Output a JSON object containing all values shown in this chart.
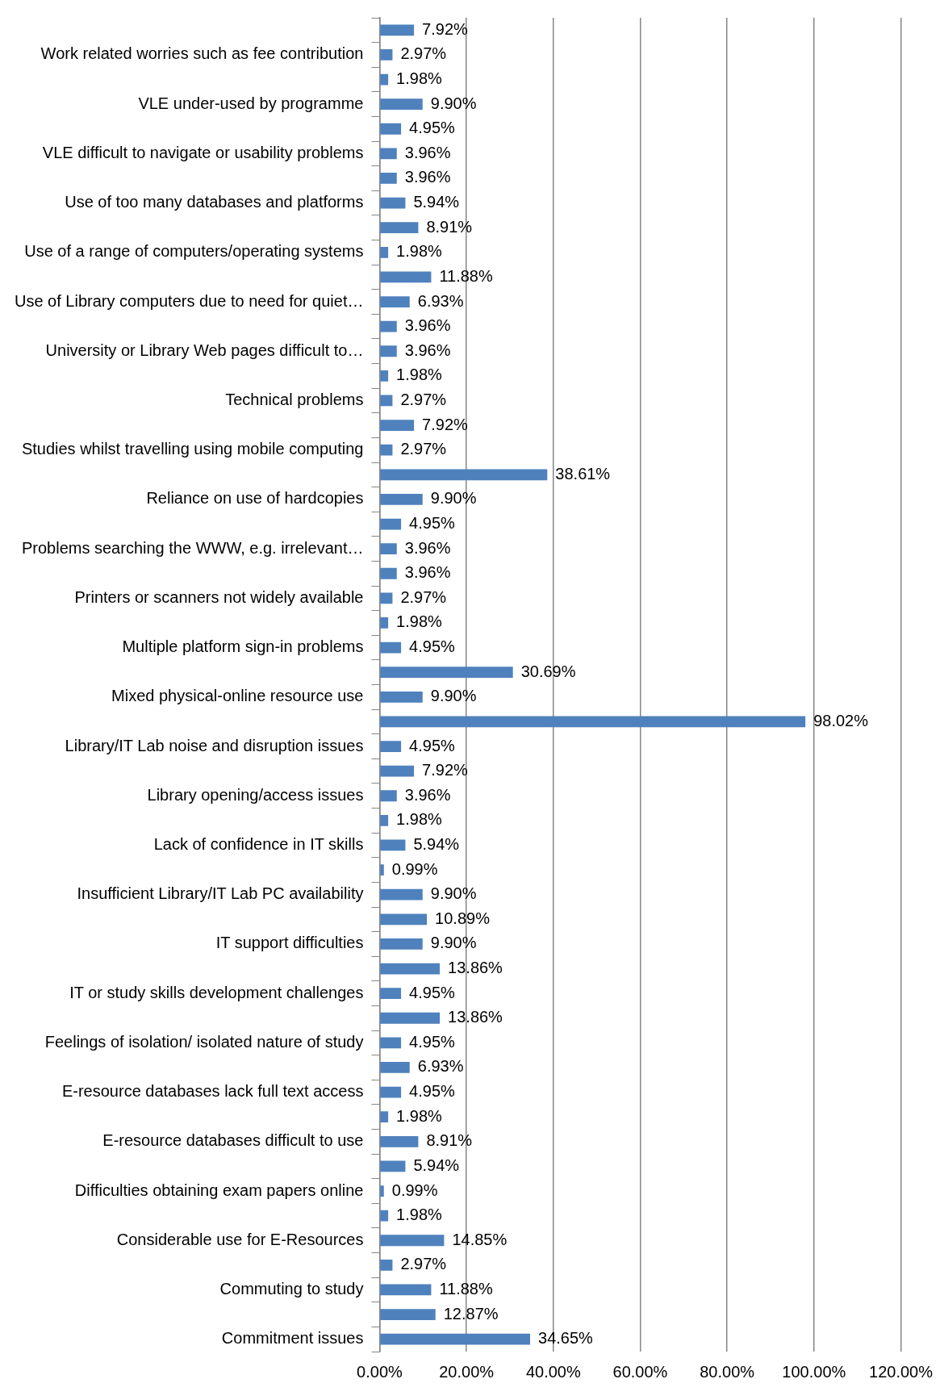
{
  "chart_data": {
    "type": "bar",
    "orientation": "horizontal",
    "categories": [
      null,
      "Work related worries such as fee contribution",
      null,
      "VLE under-used by programme",
      null,
      "VLE difficult to navigate or usability problems",
      null,
      "Use of too many databases and platforms",
      null,
      "Use of a range of computers/operating systems",
      null,
      "Use of Library computers due to need for quiet…",
      null,
      "University or Library Web pages difficult to…",
      null,
      "Technical problems",
      null,
      "Studies whilst travelling using mobile computing",
      null,
      "Reliance on use of hardcopies",
      null,
      "Problems searching the WWW, e.g. irrelevant…",
      null,
      "Printers or scanners not widely available",
      null,
      "Multiple platform sign-in problems",
      null,
      "Mixed physical-online resource use",
      null,
      "Library/IT Lab noise and disruption issues",
      null,
      "Library opening/access issues",
      null,
      "Lack of confidence in IT skills",
      null,
      "Insufficient Library/IT Lab PC availability",
      null,
      "IT support difficulties",
      null,
      "IT or study skills development challenges",
      null,
      "Feelings of isolation/ isolated nature of study",
      null,
      "E-resource databases lack full text access",
      null,
      "E-resource databases difficult to use",
      null,
      "Difficulties obtaining exam papers online",
      null,
      "Considerable use for E-Resources",
      null,
      "Commuting to study",
      null,
      "Commitment issues"
    ],
    "values": [
      7.92,
      2.97,
      1.98,
      9.9,
      4.95,
      3.96,
      3.96,
      5.94,
      8.91,
      1.98,
      11.88,
      6.93,
      3.96,
      3.96,
      1.98,
      2.97,
      7.92,
      2.97,
      38.61,
      9.9,
      4.95,
      3.96,
      3.96,
      2.97,
      1.98,
      4.95,
      30.69,
      9.9,
      98.02,
      4.95,
      7.92,
      3.96,
      1.98,
      5.94,
      0.99,
      9.9,
      10.89,
      9.9,
      13.86,
      4.95,
      13.86,
      4.95,
      6.93,
      4.95,
      1.98,
      8.91,
      5.94,
      0.99,
      1.98,
      14.85,
      2.97,
      11.88,
      12.87,
      34.65
    ],
    "value_labels": [
      "7.92%",
      "2.97%",
      "1.98%",
      "9.90%",
      "4.95%",
      "3.96%",
      "3.96%",
      "5.94%",
      "8.91%",
      "1.98%",
      "11.88%",
      "6.93%",
      "3.96%",
      "3.96%",
      "1.98%",
      "2.97%",
      "7.92%",
      "2.97%",
      "38.61%",
      "9.90%",
      "4.95%",
      "3.96%",
      "3.96%",
      "2.97%",
      "1.98%",
      "4.95%",
      "30.69%",
      "9.90%",
      "98.02%",
      "4.95%",
      "7.92%",
      "3.96%",
      "1.98%",
      "5.94%",
      "0.99%",
      "9.90%",
      "10.89%",
      "9.90%",
      "13.86%",
      "4.95%",
      "13.86%",
      "4.95%",
      "6.93%",
      "4.95%",
      "1.98%",
      "8.91%",
      "5.94%",
      "0.99%",
      "1.98%",
      "14.85%",
      "2.97%",
      "11.88%",
      "12.87%",
      "34.65%"
    ],
    "color": "#4f81bd",
    "xlim": [
      0,
      120
    ],
    "xticks": [
      {
        "value": 0,
        "label": "0.00%"
      },
      {
        "value": 20,
        "label": "20.00%"
      },
      {
        "value": 40,
        "label": "40.00%"
      },
      {
        "value": 60,
        "label": "60.00%"
      },
      {
        "value": 80,
        "label": "80.00%"
      },
      {
        "value": 100,
        "label": "100.00%"
      },
      {
        "value": 120,
        "label": "120.00%"
      }
    ],
    "grid": "x",
    "legend": false
  }
}
